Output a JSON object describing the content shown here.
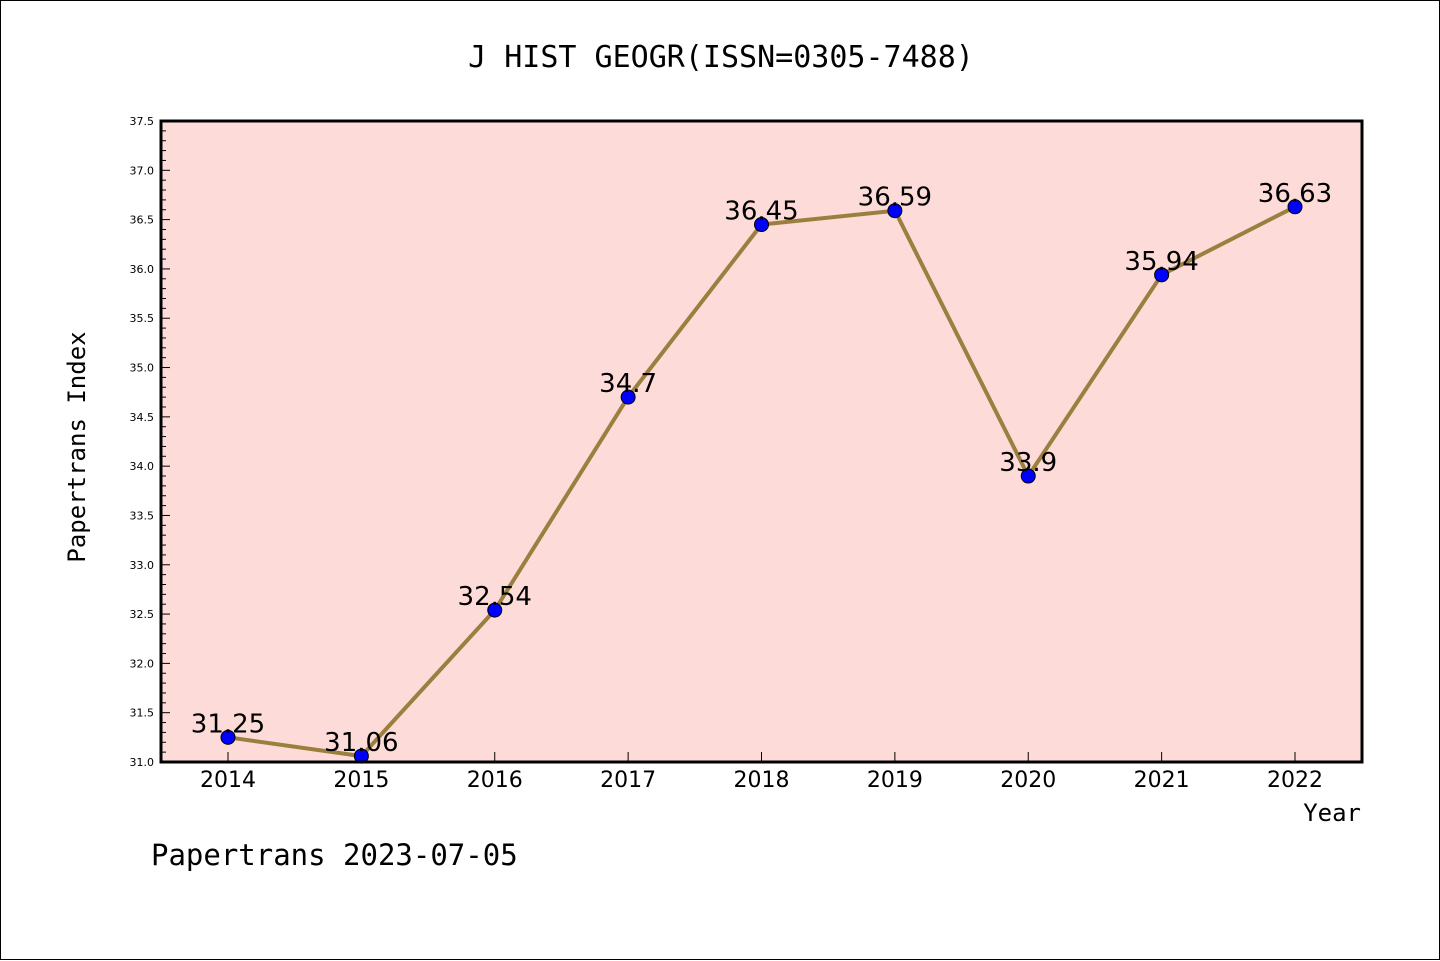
{
  "chart_data": {
    "type": "line",
    "title": "J HIST GEOGR(ISSN=0305-7488)",
    "xlabel": "Year",
    "ylabel": "Papertrans Index",
    "footer": "Papertrans 2023-07-05",
    "x": [
      "2014",
      "2015",
      "2016",
      "2017",
      "2018",
      "2019",
      "2020",
      "2021",
      "2022"
    ],
    "series": [
      {
        "values": [
          31.25,
          31.06,
          32.54,
          34.7,
          36.45,
          36.59,
          33.9,
          35.94,
          36.63
        ],
        "labels": [
          "31.25",
          "31.06",
          "32.54",
          "34.7",
          "36.45",
          "36.59",
          "33.9",
          "35.94",
          "36.63"
        ]
      }
    ],
    "ylim": [
      31.0,
      37.5
    ],
    "yticks": [
      "31.0",
      "31.5",
      "32.0",
      "32.5",
      "33.0",
      "33.5",
      "34.0",
      "34.5",
      "35.0",
      "35.5",
      "36.0",
      "36.5",
      "37.0",
      "37.5"
    ],
    "grid": false,
    "colors": {
      "plot_background": "#fddbd8",
      "line": "#9a7f3f",
      "marker": "#0000ff",
      "axes": "#000000"
    }
  }
}
